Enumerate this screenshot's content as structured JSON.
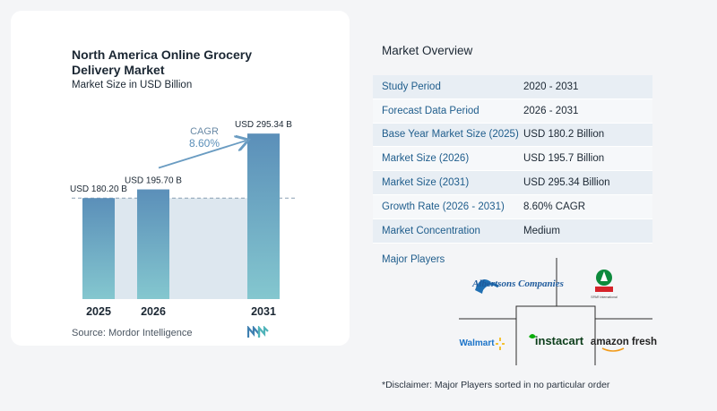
{
  "chart_panel": {
    "title": "North America Online Grocery Delivery Market",
    "subtitle": "Market Size in USD Billion",
    "source": "Source:  Mordor Intelligence"
  },
  "chart_data": {
    "type": "bar",
    "categories": [
      "2025",
      "2026",
      "2031"
    ],
    "values": [
      180.2,
      195.7,
      295.34
    ],
    "data_labels": [
      "USD 180.20 B",
      "USD 195.70 B",
      "USD 295.34 B"
    ],
    "ylim": [
      0,
      310
    ],
    "annotation": {
      "label": "CAGR",
      "value": "8.60%"
    },
    "colors": {
      "bar_top": "#5b8fb9",
      "bar_bottom": "#84c7cf",
      "band": "#dde7ef",
      "arrow": "#6a9cc2"
    }
  },
  "overview": {
    "title": "Market Overview",
    "rows": [
      {
        "key": "Study Period",
        "value": "2020 - 2031"
      },
      {
        "key": "Forecast Data Period",
        "value": "2026 - 2031"
      },
      {
        "key": "Base Year Market Size (2025)",
        "value": "USD 180.2 Billion"
      },
      {
        "key": "Market Size (2026)",
        "value": "USD 195.7 Billion"
      },
      {
        "key": "Market Size (2031)",
        "value": "USD 295.34 Billion"
      },
      {
        "key": "Growth Rate (2026 - 2031)",
        "value": "8.60% CAGR"
      },
      {
        "key": "Market Concentration",
        "value": "Medium"
      }
    ],
    "players_label": "Major Players",
    "players": [
      "Albertsons Companies",
      "SPAR International",
      "Walmart",
      "instacart",
      "amazon fresh"
    ],
    "disclaimer": "*Disclaimer: Major Players sorted in no particular order"
  }
}
